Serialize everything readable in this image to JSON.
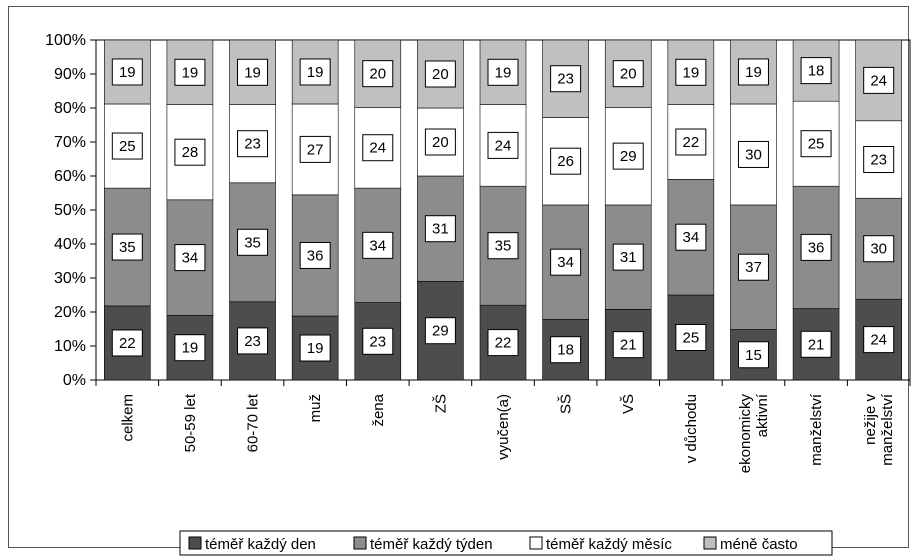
{
  "chart_data": {
    "type": "bar",
    "stacked": true,
    "percent": true,
    "title": "",
    "xlabel": "",
    "ylabel": "",
    "ylim": [
      0,
      100
    ],
    "yticks": [
      "0%",
      "10%",
      "20%",
      "30%",
      "40%",
      "50%",
      "60%",
      "70%",
      "80%",
      "90%",
      "100%"
    ],
    "grid": false,
    "legend_position": "bottom",
    "categories": [
      [
        "celkem"
      ],
      [
        "50-59 let"
      ],
      [
        "60-70 let"
      ],
      [
        "muž"
      ],
      [
        "žena"
      ],
      [
        "ZŠ"
      ],
      [
        "vyučen(a)"
      ],
      [
        "SŠ"
      ],
      [
        "VŠ"
      ],
      [
        "v důchodu"
      ],
      [
        "ekonomicky",
        "aktivní"
      ],
      [
        "manželství"
      ],
      [
        "nežije v",
        "manželství"
      ]
    ],
    "series": [
      {
        "name": "téměř každý den",
        "color": "#4d4d4d",
        "values": [
          22,
          19,
          23,
          19,
          23,
          29,
          22,
          18,
          21,
          25,
          15,
          21,
          24
        ]
      },
      {
        "name": "téměř každý týden",
        "color": "#8c8c8c",
        "values": [
          35,
          34,
          35,
          36,
          34,
          31,
          35,
          34,
          31,
          34,
          37,
          36,
          30
        ]
      },
      {
        "name": "téměř každý měsíc",
        "color": "#ffffff",
        "values": [
          25,
          28,
          23,
          27,
          24,
          20,
          24,
          26,
          29,
          22,
          30,
          25,
          23
        ]
      },
      {
        "name": "méně často",
        "color": "#c0c0c0",
        "values": [
          19,
          19,
          19,
          19,
          20,
          20,
          19,
          23,
          20,
          19,
          19,
          18,
          24
        ]
      }
    ]
  }
}
